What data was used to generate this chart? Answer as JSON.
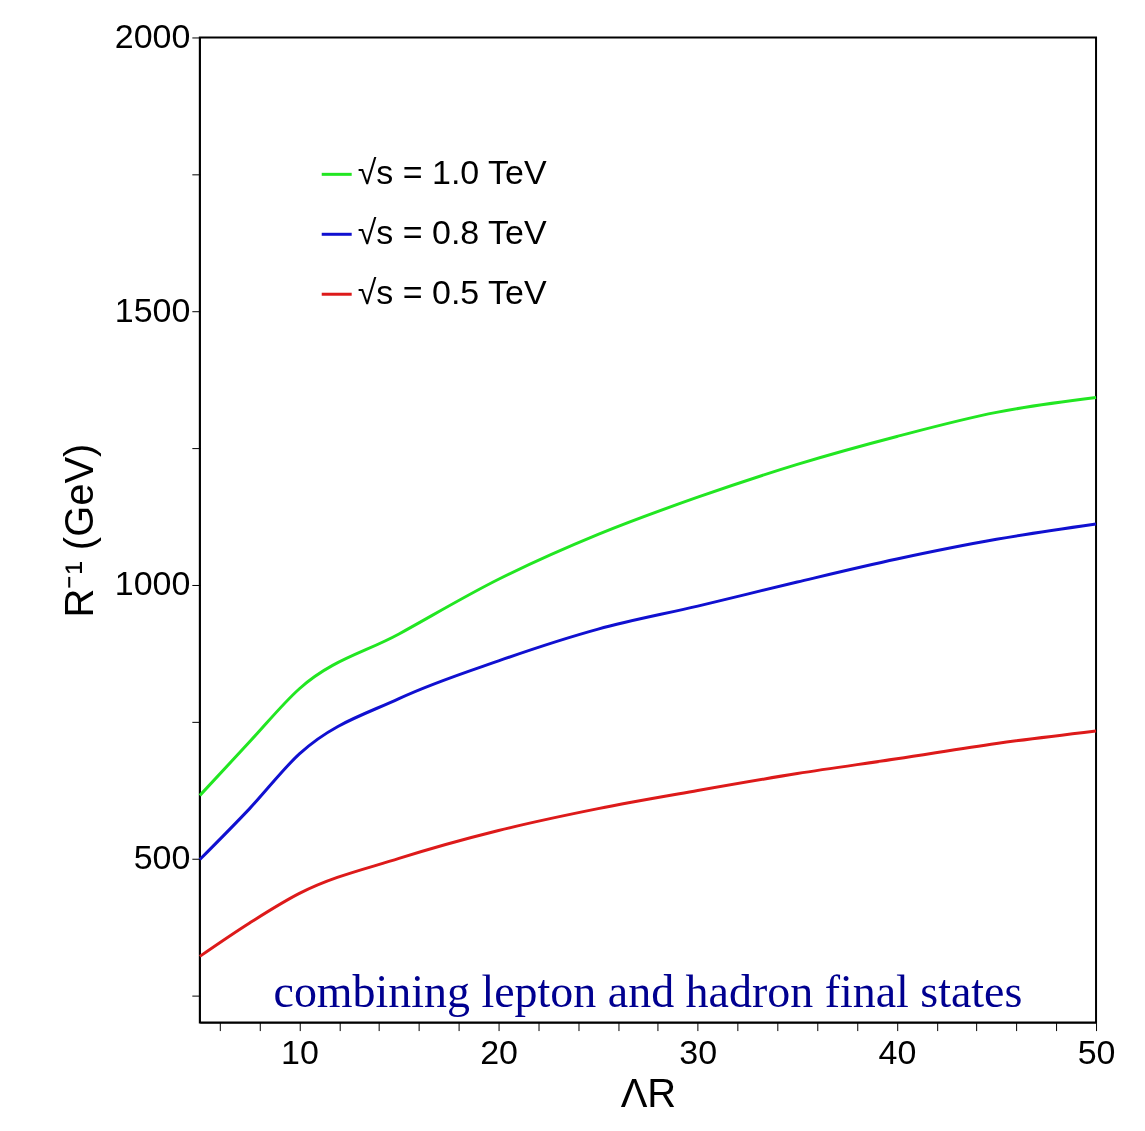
{
  "chart_data": {
    "type": "line",
    "xlabel": "ΛR",
    "ylabel": "R⁻¹ (GeV)",
    "x": [
      5,
      7.5,
      10,
      15,
      20,
      25,
      30,
      35,
      40,
      45,
      50
    ],
    "series": [
      {
        "name": "√s = 1.0 TeV",
        "color": "#22e622",
        "values": [
          615,
          713,
          810,
          910,
          1010,
          1092,
          1160,
          1220,
          1271,
          1315,
          1342
        ]
      },
      {
        "name": "√s = 0.8 TeV",
        "color": "#1010d0",
        "values": [
          498,
          591,
          691,
          792,
          861,
          919,
          961,
          1005,
          1047,
          1083,
          1111
        ]
      },
      {
        "name": "√s = 0.5 TeV",
        "color": "#dd1a1a",
        "values": [
          321,
          382,
          436,
          500,
          551,
          591,
          624,
          655,
          682,
          710,
          733
        ]
      }
    ],
    "xlim": [
      5,
      50
    ],
    "xticks": [
      {
        "value": 6,
        "label": null
      },
      {
        "value": 8,
        "label": null
      },
      10,
      {
        "value": 12,
        "label": null
      },
      {
        "value": 14,
        "label": null
      },
      {
        "value": 16,
        "label": null
      },
      {
        "value": 18,
        "label": null
      },
      20,
      {
        "value": 22,
        "label": null
      },
      {
        "value": 24,
        "label": null
      },
      {
        "value": 26,
        "label": null
      },
      {
        "value": 28,
        "label": null
      },
      30,
      {
        "value": 32,
        "label": null
      },
      {
        "value": 34,
        "label": null
      },
      {
        "value": 36,
        "label": null
      },
      {
        "value": 38,
        "label": null
      },
      40,
      {
        "value": 42,
        "label": null
      },
      {
        "value": 44,
        "label": null
      },
      {
        "value": 46,
        "label": null
      },
      {
        "value": 48,
        "label": null
      },
      50
    ],
    "ylim": [
      200,
      2000
    ],
    "yticks": [
      {
        "value": 250,
        "label": null
      },
      500,
      {
        "value": 750,
        "label": null
      },
      1000,
      {
        "value": 1250,
        "label": null
      },
      1500,
      {
        "value": 1750,
        "label": null
      },
      2000
    ],
    "legend": "top left",
    "grid": false,
    "marker": "none",
    "line_style": "solid",
    "annotations": [
      "combining lepton and hadron final states"
    ]
  }
}
